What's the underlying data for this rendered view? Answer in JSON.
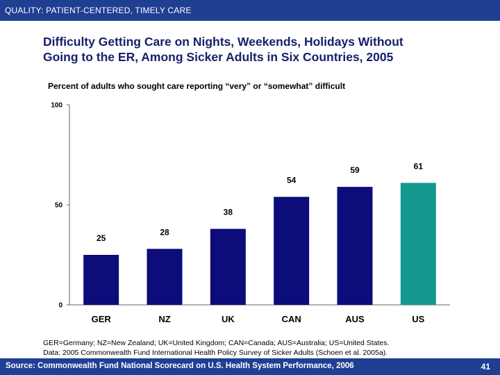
{
  "header": {
    "section_label": "QUALITY: PATIENT-CENTERED, TIMELY CARE"
  },
  "title_lines": [
    "Difficulty Getting Care on Nights, Weekends, Holidays Without",
    "Going to the ER, Among Sicker Adults in Six Countries, 2005"
  ],
  "subtitle": "Percent of adults who sought care reporting “very” or “somewhat” difficult",
  "chart_data": {
    "type": "bar",
    "categories": [
      "GER",
      "NZ",
      "UK",
      "CAN",
      "AUS",
      "US"
    ],
    "values": [
      25,
      28,
      38,
      54,
      59,
      61
    ],
    "ylim": [
      0,
      100
    ],
    "yticks": [
      0,
      50,
      100
    ],
    "ytick_labels": [
      "0",
      "50",
      "100"
    ],
    "grid": false,
    "colors": [
      "#0c0c7a",
      "#0c0c7a",
      "#0c0c7a",
      "#0c0c7a",
      "#0c0c7a",
      "#139990"
    ]
  },
  "notes": [
    "GER=Germany; NZ=New Zealand; UK=United Kingdom; CAN=Canada; AUS=Australia; US=United States.",
    "Data: 2005 Commonwealth Fund International Health Policy Survey of Sicker Adults (Schoen et al. 2005a)."
  ],
  "footer": {
    "source": "Source: Commonwealth Fund National Scorecard on U.S. Health System Performance, 2006",
    "page_number": "41"
  }
}
